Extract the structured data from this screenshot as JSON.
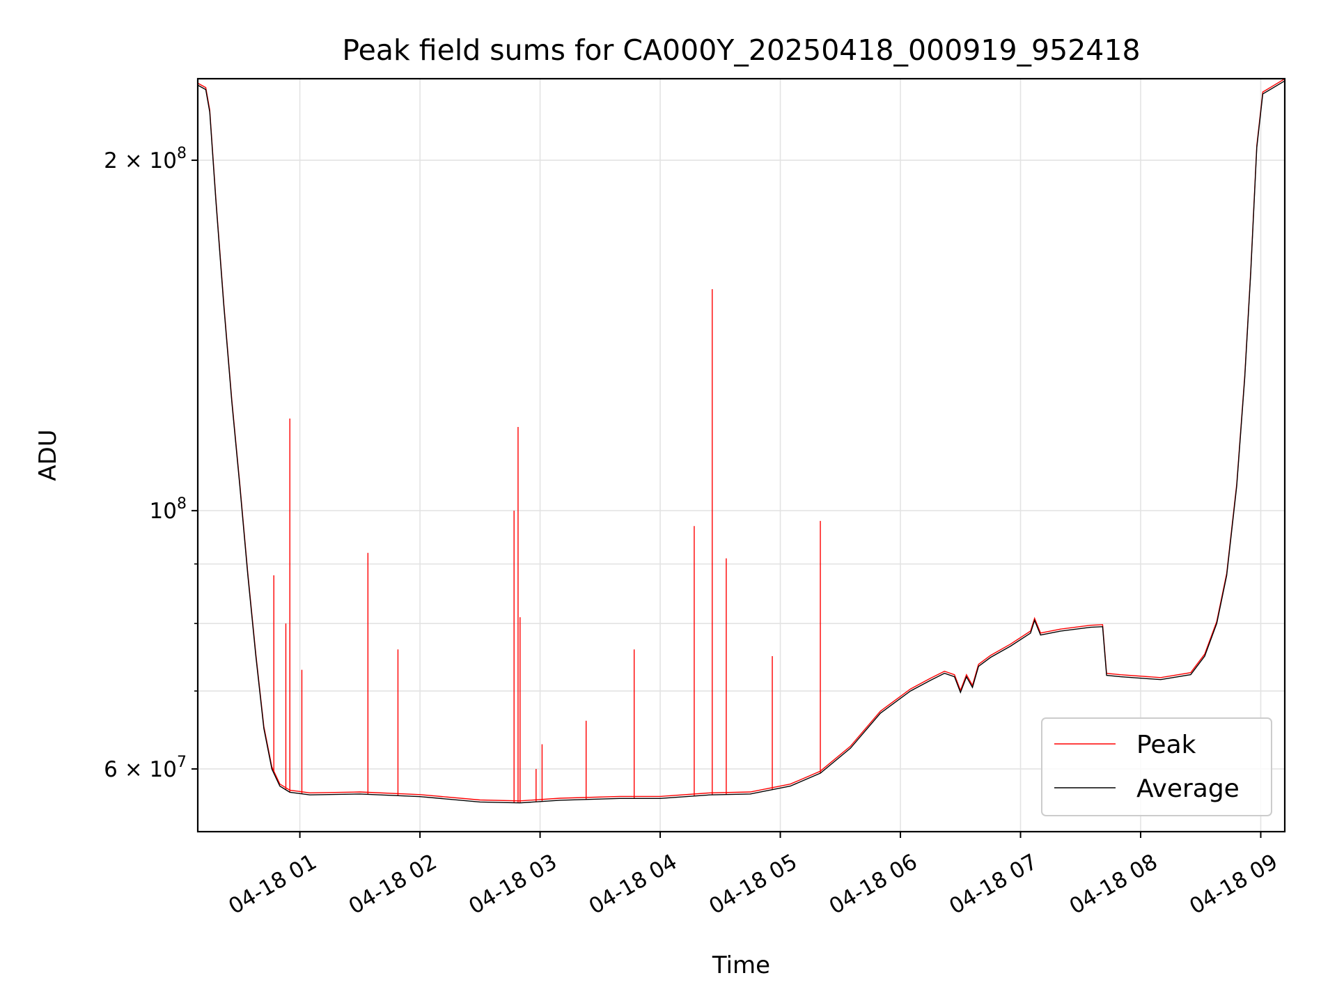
{
  "chart_data": {
    "type": "line",
    "title": "Peak field sums for CA000Y_20250418_000919_952418",
    "xlabel": "Time",
    "ylabel": "ADU",
    "yscale": "log",
    "xlim": [
      "2025-04-18 00:09",
      "2025-04-18 09:12"
    ],
    "ylim": [
      53000000,
      235000000
    ],
    "grid": true,
    "legend_position": "lower-right",
    "x_ticks": [
      "04-18 01",
      "04-18 02",
      "04-18 03",
      "04-18 04",
      "04-18 05",
      "04-18 06",
      "04-18 07",
      "04-18 08",
      "04-18 09"
    ],
    "y_ticks": [
      {
        "value": 60000000,
        "label": "6 × 10",
        "exp": "7"
      },
      {
        "value": 100000000,
        "label": "10",
        "exp": "8"
      },
      {
        "value": 200000000,
        "label": "2 × 10",
        "exp": "8"
      }
    ],
    "y_minor_ticks": [
      70000000,
      80000000,
      90000000
    ],
    "series": [
      {
        "name": "Peak",
        "color": "#ff0000",
        "baseline_from_average": true,
        "spikes": [
          [
            "00:47",
            88000000
          ],
          [
            "00:53",
            80000000
          ],
          [
            "00:55",
            120000000
          ],
          [
            "01:01",
            73000000
          ],
          [
            "01:34",
            92000000
          ],
          [
            "01:49",
            76000000
          ],
          [
            "02:47",
            100000000
          ],
          [
            "02:49",
            118000000
          ],
          [
            "02:50",
            81000000
          ],
          [
            "02:58",
            60000000
          ],
          [
            "03:01",
            63000000
          ],
          [
            "03:23",
            66000000
          ],
          [
            "03:47",
            76000000
          ],
          [
            "04:17",
            97000000
          ],
          [
            "04:26",
            155000000
          ],
          [
            "04:33",
            91000000
          ],
          [
            "04:56",
            75000000
          ],
          [
            "05:20",
            98000000
          ]
        ]
      },
      {
        "name": "Average",
        "color": "#000000",
        "points": [
          [
            "00:09",
            232000000
          ],
          [
            "00:13",
            230000000
          ],
          [
            "00:15",
            220000000
          ],
          [
            "00:18",
            185000000
          ],
          [
            "00:22",
            150000000
          ],
          [
            "00:26",
            124000000
          ],
          [
            "00:30",
            105000000
          ],
          [
            "00:34",
            88000000
          ],
          [
            "00:38",
            75000000
          ],
          [
            "00:42",
            65000000
          ],
          [
            "00:46",
            60000000
          ],
          [
            "00:50",
            58000000
          ],
          [
            "00:55",
            57300000
          ],
          [
            "01:05",
            57000000
          ],
          [
            "01:30",
            57100000
          ],
          [
            "02:00",
            56800000
          ],
          [
            "02:30",
            56200000
          ],
          [
            "02:50",
            56100000
          ],
          [
            "03:10",
            56400000
          ],
          [
            "03:40",
            56600000
          ],
          [
            "04:00",
            56600000
          ],
          [
            "04:25",
            57000000
          ],
          [
            "04:45",
            57100000
          ],
          [
            "05:05",
            58000000
          ],
          [
            "05:20",
            59500000
          ],
          [
            "05:35",
            62500000
          ],
          [
            "05:50",
            67000000
          ],
          [
            "06:05",
            70000000
          ],
          [
            "06:15",
            71500000
          ],
          [
            "06:22",
            72500000
          ],
          [
            "06:27",
            72000000
          ],
          [
            "06:30",
            69800000
          ],
          [
            "06:33",
            72000000
          ],
          [
            "06:36",
            70500000
          ],
          [
            "06:39",
            73500000
          ],
          [
            "06:45",
            74800000
          ],
          [
            "06:55",
            76500000
          ],
          [
            "07:05",
            78500000
          ],
          [
            "07:07",
            80500000
          ],
          [
            "07:10",
            78200000
          ],
          [
            "07:20",
            78800000
          ],
          [
            "07:35",
            79400000
          ],
          [
            "07:41",
            79500000
          ],
          [
            "07:43",
            72200000
          ],
          [
            "07:50",
            72000000
          ],
          [
            "08:10",
            71600000
          ],
          [
            "08:25",
            72300000
          ],
          [
            "08:32",
            75000000
          ],
          [
            "08:38",
            80000000
          ],
          [
            "08:43",
            88000000
          ],
          [
            "08:48",
            105000000
          ],
          [
            "08:52",
            130000000
          ],
          [
            "08:55",
            160000000
          ],
          [
            "08:58",
            205000000
          ],
          [
            "09:01",
            228000000
          ],
          [
            "09:12",
            234000000
          ]
        ]
      }
    ]
  },
  "legend": {
    "items": [
      {
        "label": "Peak",
        "color": "#ff0000"
      },
      {
        "label": "Average",
        "color": "#000000"
      }
    ]
  }
}
